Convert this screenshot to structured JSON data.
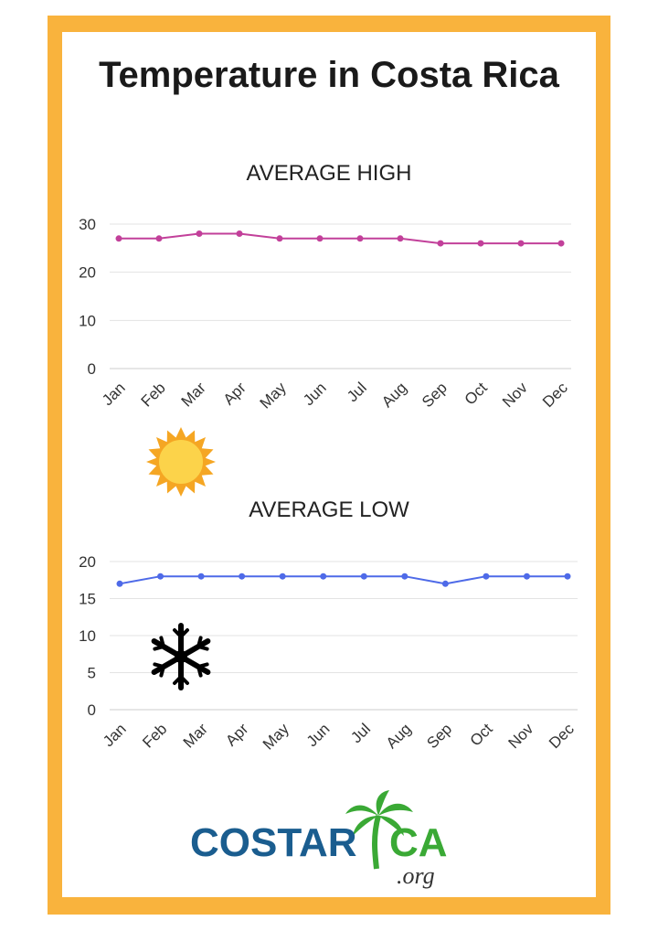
{
  "title": "Temperature in Costa Rica",
  "colors": {
    "frame": "#f9b33d",
    "high_line": "#c2409a",
    "low_line": "#4e6ae8",
    "logo_blue": "#1a5d8f",
    "logo_green": "#3aa935"
  },
  "chart_data": [
    {
      "type": "line",
      "title": "AVERAGE HIGH",
      "categories": [
        "Jan",
        "Feb",
        "Mar",
        "Apr",
        "May",
        "Jun",
        "Jul",
        "Aug",
        "Sep",
        "Oct",
        "Nov",
        "Dec"
      ],
      "series": [
        {
          "values": [
            27,
            27,
            28,
            28,
            27,
            27,
            27,
            27,
            26,
            26,
            26,
            26
          ],
          "color": "#c2409a"
        }
      ],
      "ylim": [
        0,
        30
      ],
      "yticks": [
        0,
        10,
        20,
        30
      ],
      "grid": true,
      "decoration": "sun-icon"
    },
    {
      "type": "line",
      "title": "AVERAGE LOW",
      "categories": [
        "Jan",
        "Feb",
        "Mar",
        "Apr",
        "May",
        "Jun",
        "Jul",
        "Aug",
        "Sep",
        "Oct",
        "Nov",
        "Dec"
      ],
      "series": [
        {
          "values": [
            17,
            18,
            18,
            18,
            18,
            18,
            18,
            18,
            17,
            18,
            18,
            18
          ],
          "color": "#4e6ae8"
        }
      ],
      "ylim": [
        0,
        20
      ],
      "yticks": [
        0,
        5,
        10,
        15,
        20
      ],
      "grid": true,
      "decoration": "snowflake-icon"
    }
  ],
  "logo": {
    "brand": "COSTARICA",
    "suffix": ".org"
  }
}
